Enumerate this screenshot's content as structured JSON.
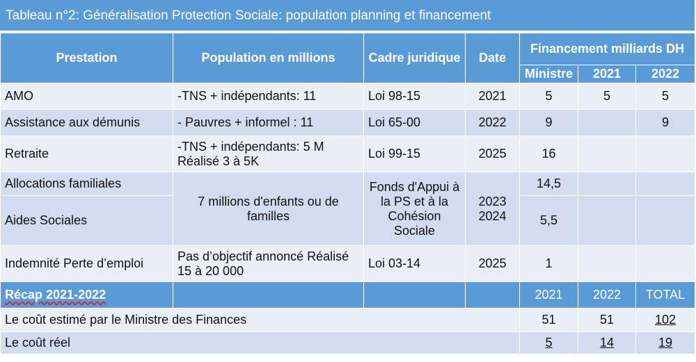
{
  "title": "Tableau n°2: Généralisation Protection Sociale: population planning et financement",
  "headers": {
    "prestation": "Prestation",
    "population": "Population en millions",
    "cadre": "Cadre juridique",
    "date": "Date",
    "financement": "Financement milliards DH",
    "ministre": "Ministre",
    "y2021": "2021",
    "y2022": "2022"
  },
  "rows": [
    {
      "prestation": "AMO",
      "population": "-TNS + indépendants: 11",
      "cadre": "Loi 98-15",
      "date": "2021",
      "ministre": "5",
      "y2021": "5",
      "y2022": "5"
    },
    {
      "prestation": "Assistance aux démunis",
      "population": "- Pauvres + informel : 11",
      "cadre": "Loi 65-00",
      "date": "2022",
      "ministre": "9",
      "y2021": "",
      "y2022": "9"
    },
    {
      "prestation": "Retraite",
      "population_l1": "-TNS + indépendants: 5 M",
      "population_l2": "Réalisé 3 à 5K",
      "cadre": "Loi 99-15",
      "date": "2025",
      "ministre": "16",
      "y2021": "",
      "y2022": ""
    },
    {
      "prestation": "Allocations familiales",
      "ministre": "14,5"
    },
    {
      "prestation": "Aides Sociales",
      "ministre": "5,5"
    },
    {
      "prestation": "Indemnité Perte d’emploi",
      "population_l1": "Pas d’objectif annoncé  Réalisé",
      "population_l2": "15 à 20 000",
      "cadre": "Loi 03-14",
      "date": "2025",
      "ministre": "1",
      "y2021": "",
      "y2022": ""
    }
  ],
  "merged": {
    "population_l1": "7 millions d'enfants ou de",
    "population_l2": "familles",
    "cadre_l1": "Fonds d'Appui à",
    "cadre_l2": "la PS et à la",
    "cadre_l3": "Cohésion",
    "cadre_l4": "Sociale",
    "date_l1": "2023",
    "date_l2": "2024"
  },
  "recap": {
    "label": "Récap 2021-2022",
    "col1": "2021",
    "col2": "2022",
    "col3": "TOTAL",
    "estime_label": "Le coût estimé  par le Ministre des Finances",
    "estime": [
      "51",
      "51",
      "102"
    ],
    "reel_label": "Le coût réel",
    "reel": [
      "5",
      "14",
      "19"
    ]
  }
}
